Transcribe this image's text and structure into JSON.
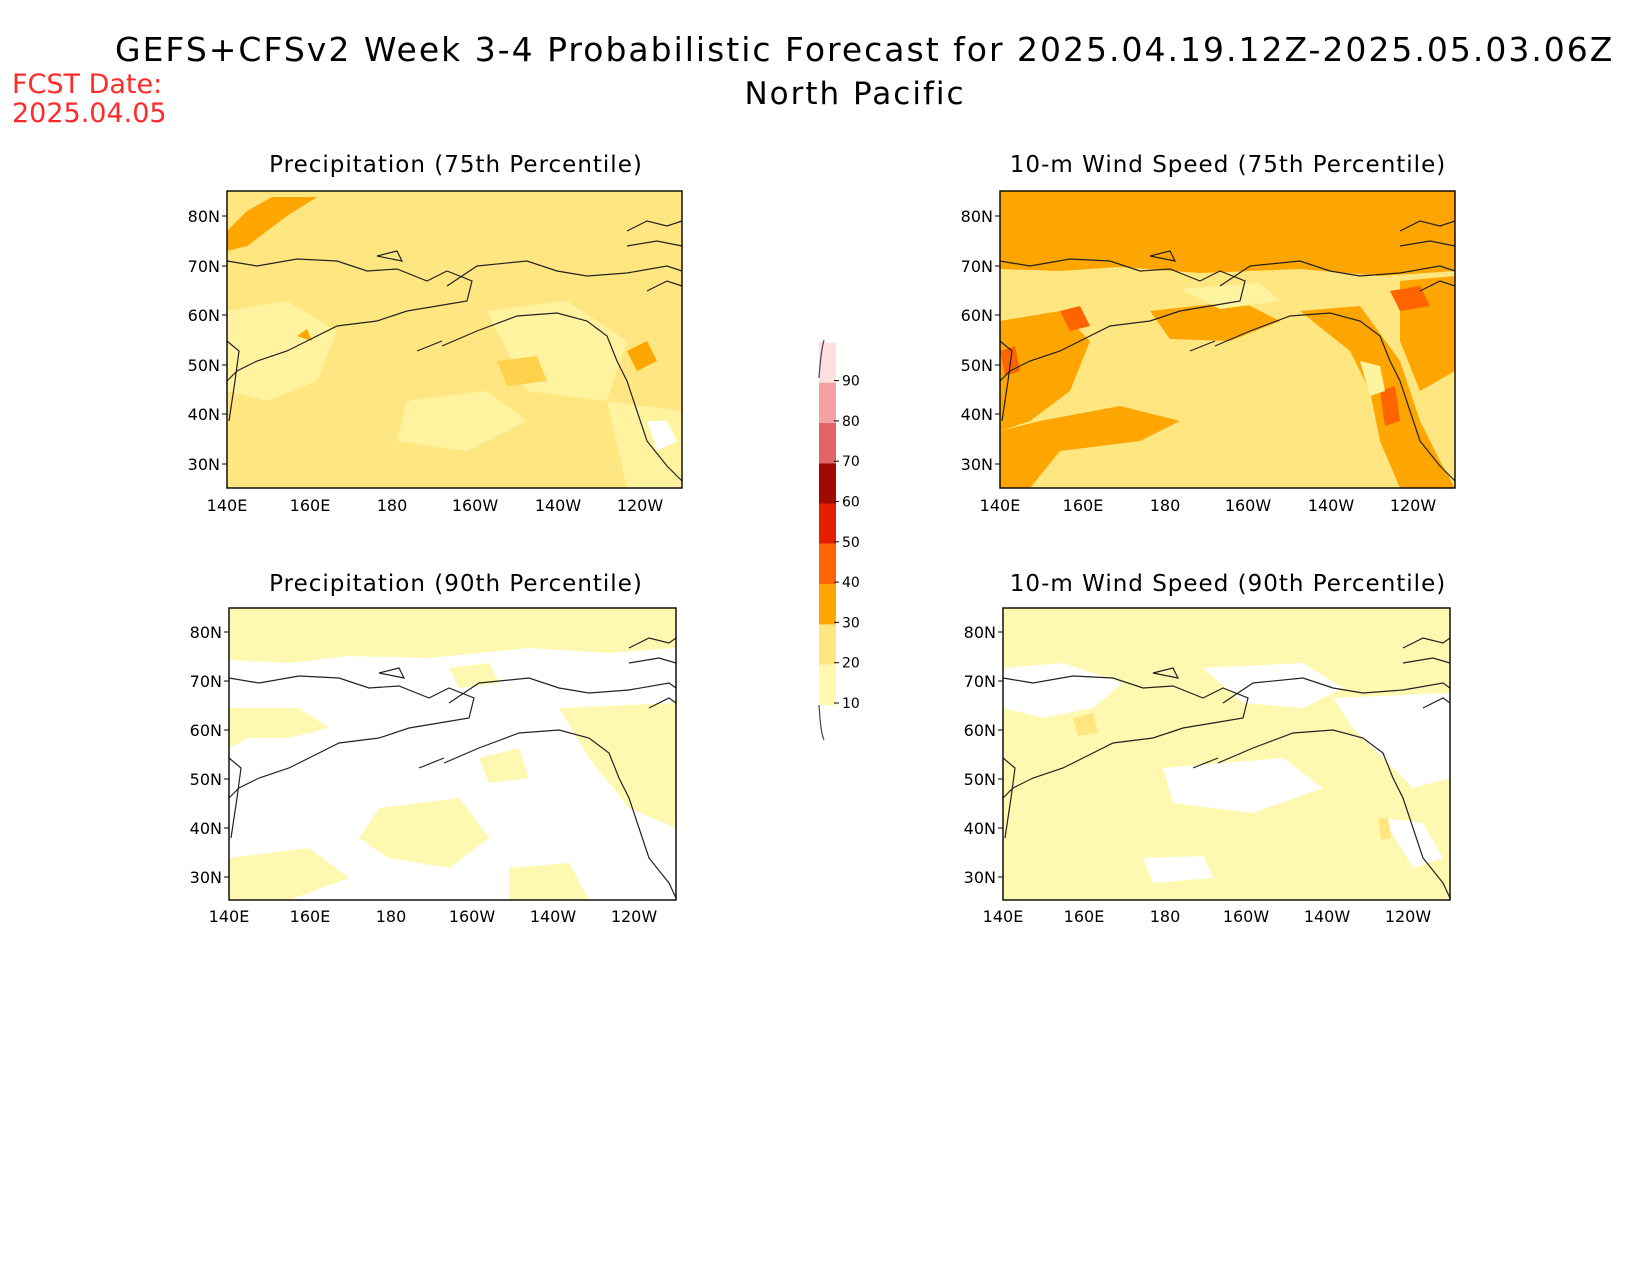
{
  "header": {
    "title": "GEFS+CFSv2 Week 3-4 Probabilistic Forecast for 2025.04.19.12Z-2025.05.03.06Z",
    "subtitle": "North Pacific",
    "fcst_label": "FCST Date:",
    "fcst_date": "2025.04.05"
  },
  "axes": {
    "lon_labels": [
      "140E",
      "160E",
      "180",
      "160W",
      "140W",
      "120W"
    ],
    "lat_labels": [
      "80N",
      "70N",
      "60N",
      "50N",
      "40N",
      "30N"
    ]
  },
  "panels": [
    {
      "title": "Precipitation (75th Percentile)",
      "base": "#ffe680"
    },
    {
      "title": "10-m Wind Speed (75th Percentile)",
      "base": "#ffe680"
    },
    {
      "title": "Precipitation (90th Percentile)",
      "base": "#ffffff"
    },
    {
      "title": "10-m Wind Speed (90th Percentile)",
      "base": "#fff8b0"
    }
  ],
  "colorbar": {
    "levels": [
      "10",
      "20",
      "30",
      "40",
      "50",
      "60",
      "70",
      "80",
      "90"
    ],
    "colors": [
      "#fff8b0",
      "#ffe680",
      "#ffa500",
      "#ff6400",
      "#e61e00",
      "#a00a00",
      "#e06464",
      "#f5a0a0",
      "#ffe0e0"
    ]
  }
}
